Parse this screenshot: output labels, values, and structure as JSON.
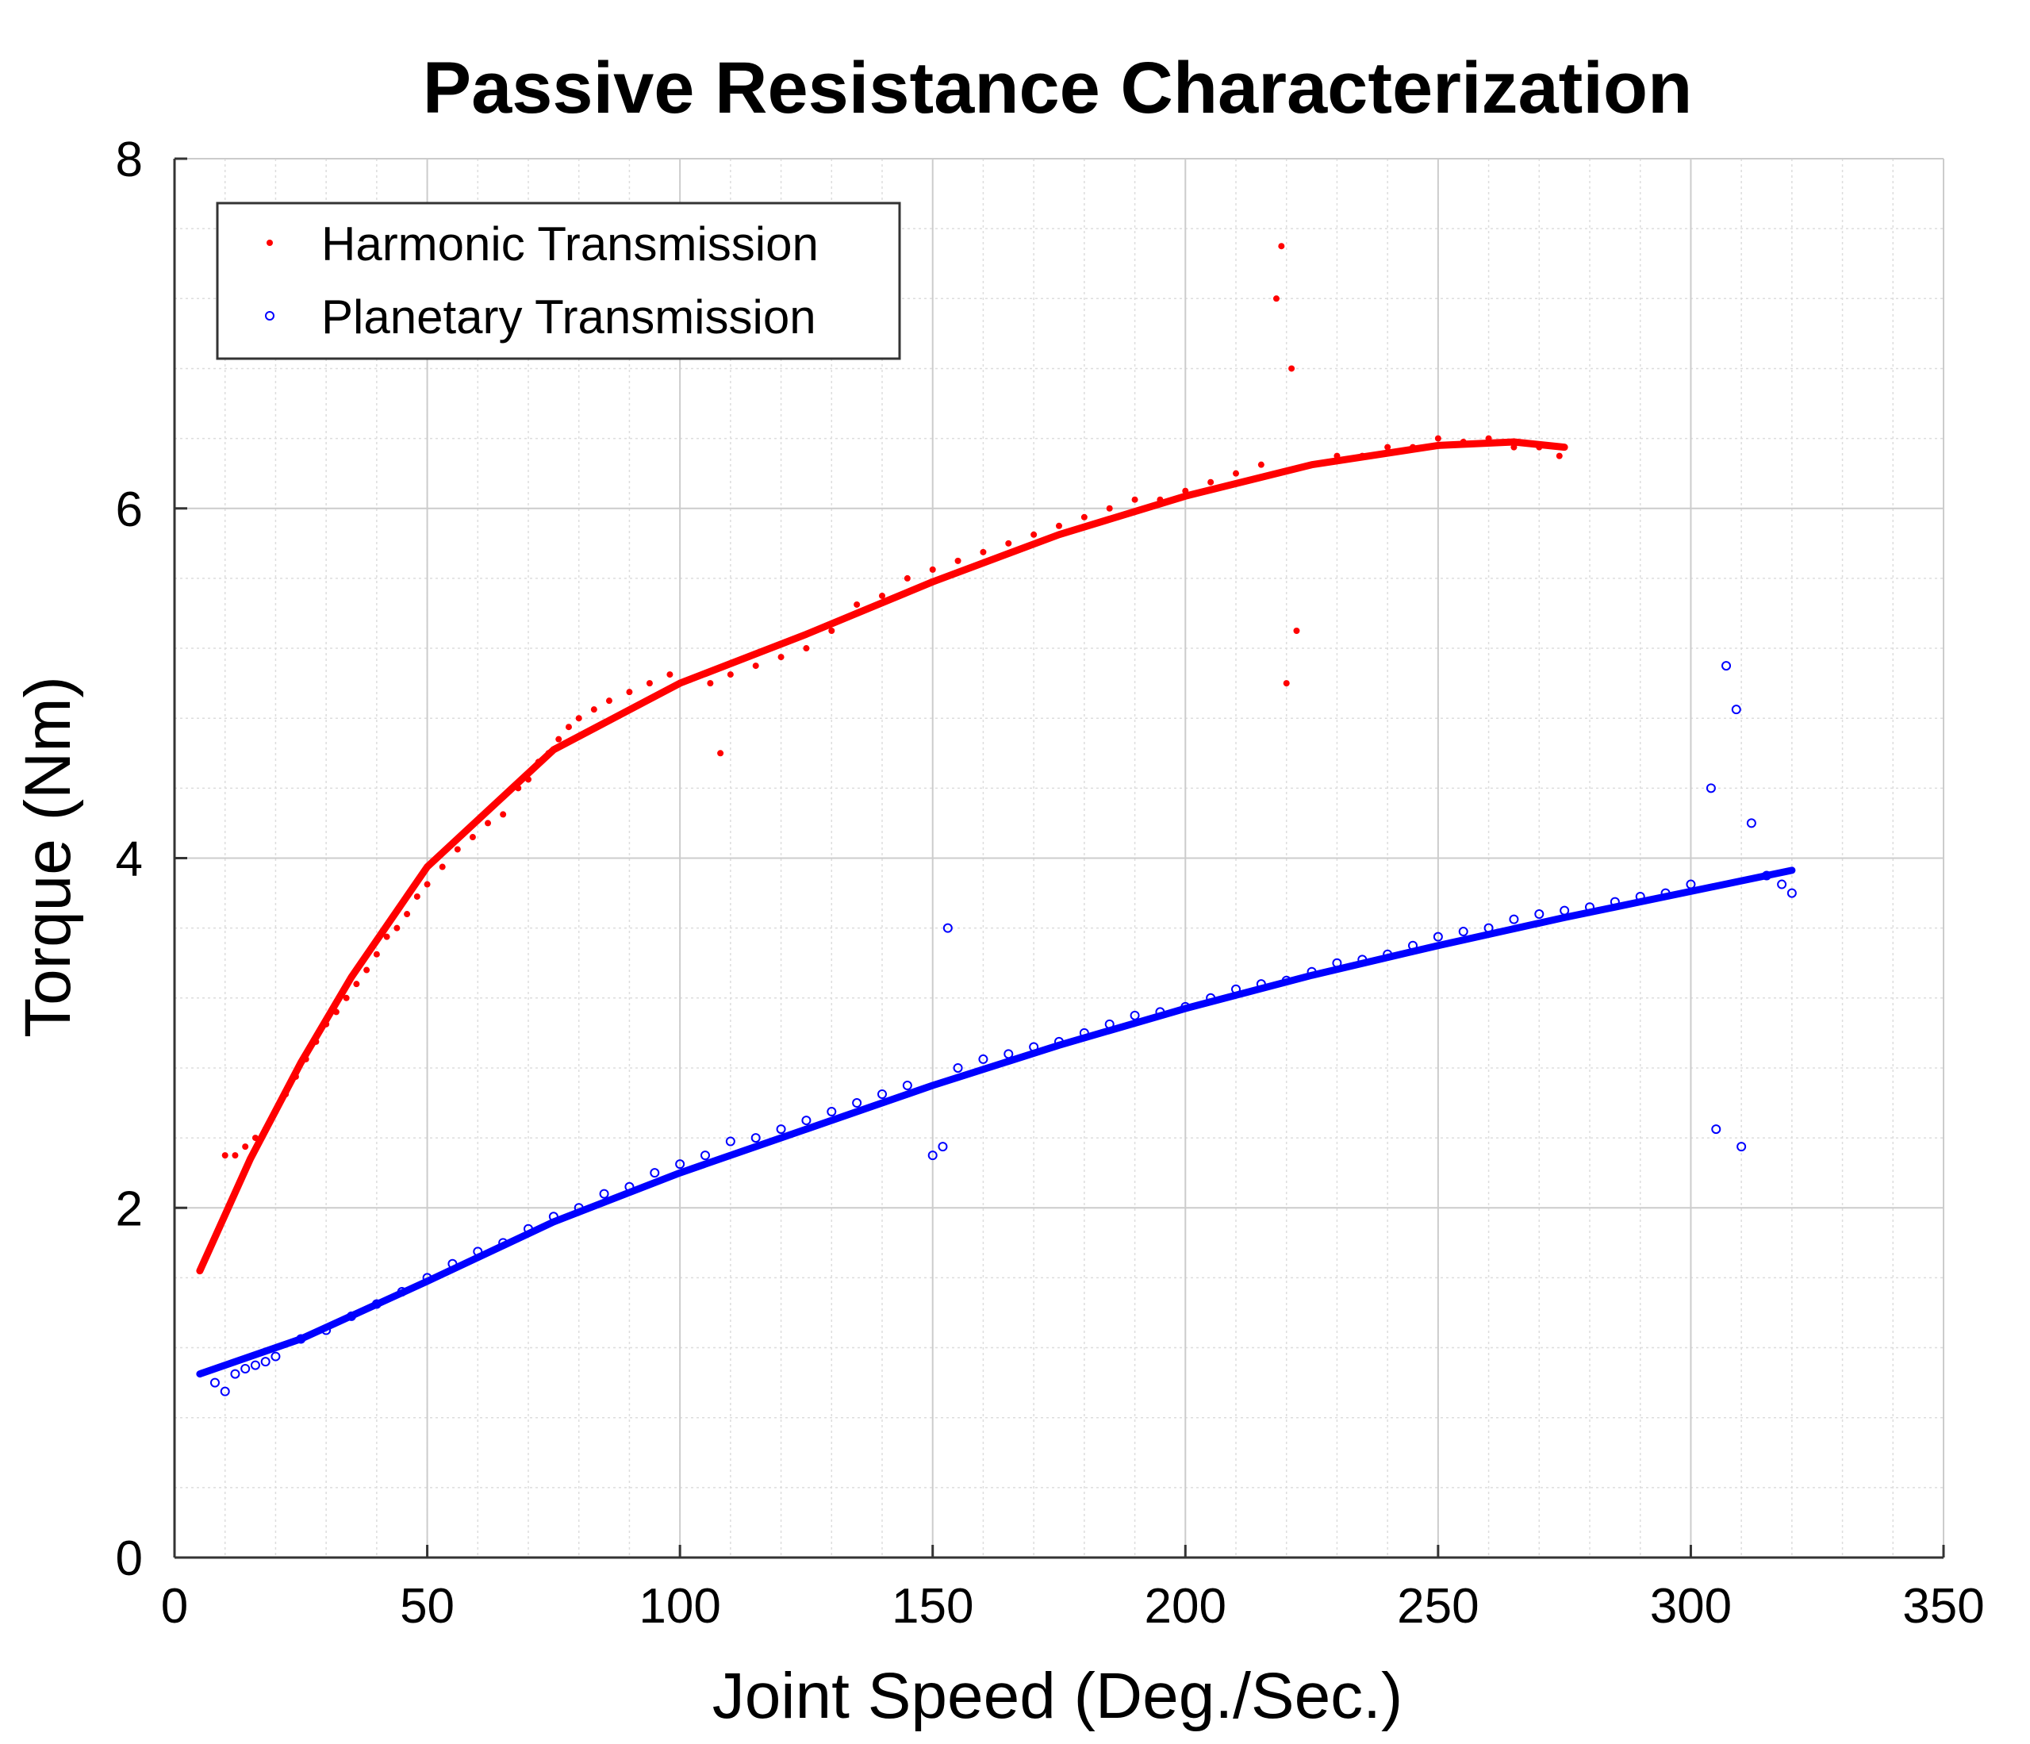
{
  "chart_data": {
    "type": "scatter",
    "title": "Passive Resistance Characterization",
    "xlabel": "Joint Speed (Deg./Sec.)",
    "ylabel": "Torque (Nm)",
    "xlim": [
      0,
      350
    ],
    "ylim": [
      0,
      8
    ],
    "xticks": [
      0,
      50,
      100,
      150,
      200,
      250,
      300,
      350
    ],
    "yticks": [
      0,
      2,
      4,
      6,
      8
    ],
    "x_minor_step": 10,
    "y_minor_step": 0.4,
    "grid": true,
    "legend_position": "top-left",
    "series": [
      {
        "name": "Harmonic Transmission",
        "color": "#ff0000",
        "marker": "dot",
        "points": [
          [
            10,
            2.3
          ],
          [
            12,
            2.3
          ],
          [
            14,
            2.35
          ],
          [
            16,
            2.4
          ],
          [
            18,
            2.45
          ],
          [
            20,
            2.55
          ],
          [
            22,
            2.65
          ],
          [
            24,
            2.75
          ],
          [
            26,
            2.85
          ],
          [
            28,
            2.95
          ],
          [
            30,
            3.05
          ],
          [
            32,
            3.12
          ],
          [
            34,
            3.2
          ],
          [
            36,
            3.28
          ],
          [
            38,
            3.36
          ],
          [
            40,
            3.45
          ],
          [
            42,
            3.55
          ],
          [
            44,
            3.6
          ],
          [
            46,
            3.68
          ],
          [
            48,
            3.78
          ],
          [
            50,
            3.85
          ],
          [
            53,
            3.95
          ],
          [
            56,
            4.05
          ],
          [
            59,
            4.12
          ],
          [
            62,
            4.2
          ],
          [
            65,
            4.25
          ],
          [
            68,
            4.4
          ],
          [
            70,
            4.45
          ],
          [
            72,
            4.55
          ],
          [
            74,
            4.6
          ],
          [
            76,
            4.68
          ],
          [
            78,
            4.75
          ],
          [
            80,
            4.8
          ],
          [
            83,
            4.85
          ],
          [
            86,
            4.9
          ],
          [
            90,
            4.95
          ],
          [
            94,
            5.0
          ],
          [
            98,
            5.05
          ],
          [
            102,
            5.02
          ],
          [
            106,
            5.0
          ],
          [
            108,
            4.6
          ],
          [
            110,
            5.05
          ],
          [
            115,
            5.1
          ],
          [
            120,
            5.15
          ],
          [
            125,
            5.2
          ],
          [
            130,
            5.3
          ],
          [
            135,
            5.45
          ],
          [
            140,
            5.5
          ],
          [
            145,
            5.6
          ],
          [
            150,
            5.65
          ],
          [
            155,
            5.7
          ],
          [
            160,
            5.75
          ],
          [
            165,
            5.8
          ],
          [
            170,
            5.85
          ],
          [
            175,
            5.9
          ],
          [
            180,
            5.95
          ],
          [
            185,
            6.0
          ],
          [
            190,
            6.05
          ],
          [
            195,
            6.05
          ],
          [
            200,
            6.1
          ],
          [
            205,
            6.15
          ],
          [
            210,
            6.2
          ],
          [
            215,
            6.25
          ],
          [
            218,
            7.2
          ],
          [
            219,
            7.5
          ],
          [
            220,
            5.0
          ],
          [
            221,
            6.8
          ],
          [
            222,
            5.3
          ],
          [
            225,
            6.25
          ],
          [
            230,
            6.3
          ],
          [
            235,
            6.3
          ],
          [
            240,
            6.35
          ],
          [
            245,
            6.35
          ],
          [
            250,
            6.4
          ],
          [
            255,
            6.38
          ],
          [
            260,
            6.4
          ],
          [
            265,
            6.35
          ],
          [
            270,
            6.35
          ],
          [
            274,
            6.3
          ]
        ],
        "fit": [
          [
            5,
            1.64
          ],
          [
            15,
            2.28
          ],
          [
            25,
            2.83
          ],
          [
            35,
            3.32
          ],
          [
            50,
            3.95
          ],
          [
            75,
            4.62
          ],
          [
            100,
            5.0
          ],
          [
            125,
            5.28
          ],
          [
            150,
            5.58
          ],
          [
            175,
            5.85
          ],
          [
            200,
            6.07
          ],
          [
            225,
            6.25
          ],
          [
            250,
            6.36
          ],
          [
            265,
            6.38
          ],
          [
            275,
            6.35
          ]
        ]
      },
      {
        "name": "Planetary Transmission",
        "color": "#0000ff",
        "marker": "circle",
        "points": [
          [
            8,
            1.0
          ],
          [
            10,
            0.95
          ],
          [
            12,
            1.05
          ],
          [
            14,
            1.08
          ],
          [
            16,
            1.1
          ],
          [
            18,
            1.12
          ],
          [
            20,
            1.15
          ],
          [
            25,
            1.25
          ],
          [
            30,
            1.3
          ],
          [
            35,
            1.38
          ],
          [
            40,
            1.45
          ],
          [
            45,
            1.52
          ],
          [
            50,
            1.6
          ],
          [
            55,
            1.68
          ],
          [
            60,
            1.75
          ],
          [
            65,
            1.8
          ],
          [
            70,
            1.88
          ],
          [
            75,
            1.95
          ],
          [
            80,
            2.0
          ],
          [
            85,
            2.08
          ],
          [
            90,
            2.12
          ],
          [
            95,
            2.2
          ],
          [
            100,
            2.25
          ],
          [
            105,
            2.3
          ],
          [
            110,
            2.38
          ],
          [
            115,
            2.4
          ],
          [
            120,
            2.45
          ],
          [
            125,
            2.5
          ],
          [
            130,
            2.55
          ],
          [
            135,
            2.6
          ],
          [
            140,
            2.65
          ],
          [
            145,
            2.7
          ],
          [
            150,
            2.3
          ],
          [
            152,
            2.35
          ],
          [
            153,
            3.6
          ],
          [
            155,
            2.8
          ],
          [
            160,
            2.85
          ],
          [
            165,
            2.88
          ],
          [
            170,
            2.92
          ],
          [
            175,
            2.95
          ],
          [
            180,
            3.0
          ],
          [
            185,
            3.05
          ],
          [
            190,
            3.1
          ],
          [
            195,
            3.12
          ],
          [
            200,
            3.15
          ],
          [
            205,
            3.2
          ],
          [
            210,
            3.25
          ],
          [
            215,
            3.28
          ],
          [
            220,
            3.3
          ],
          [
            225,
            3.35
          ],
          [
            230,
            3.4
          ],
          [
            235,
            3.42
          ],
          [
            240,
            3.45
          ],
          [
            245,
            3.5
          ],
          [
            250,
            3.55
          ],
          [
            255,
            3.58
          ],
          [
            260,
            3.6
          ],
          [
            265,
            3.65
          ],
          [
            270,
            3.68
          ],
          [
            275,
            3.7
          ],
          [
            280,
            3.72
          ],
          [
            285,
            3.75
          ],
          [
            290,
            3.78
          ],
          [
            295,
            3.8
          ],
          [
            300,
            3.85
          ],
          [
            304,
            4.4
          ],
          [
            305,
            2.45
          ],
          [
            307,
            5.1
          ],
          [
            309,
            4.85
          ],
          [
            310,
            2.35
          ],
          [
            312,
            4.2
          ],
          [
            315,
            3.9
          ],
          [
            318,
            3.85
          ],
          [
            320,
            3.8
          ]
        ],
        "fit": [
          [
            5,
            1.05
          ],
          [
            25,
            1.25
          ],
          [
            50,
            1.58
          ],
          [
            75,
            1.92
          ],
          [
            100,
            2.2
          ],
          [
            125,
            2.45
          ],
          [
            150,
            2.7
          ],
          [
            175,
            2.93
          ],
          [
            200,
            3.14
          ],
          [
            225,
            3.33
          ],
          [
            250,
            3.5
          ],
          [
            275,
            3.66
          ],
          [
            300,
            3.81
          ],
          [
            320,
            3.93
          ]
        ]
      }
    ]
  }
}
